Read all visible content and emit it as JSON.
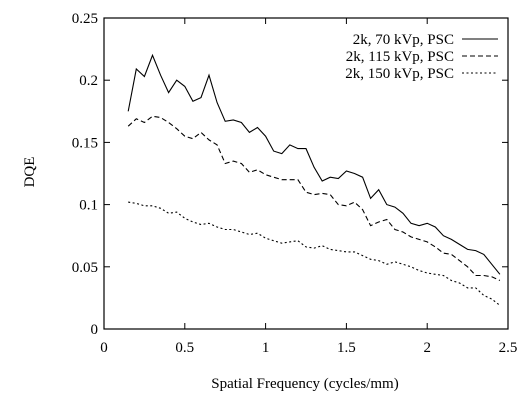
{
  "chart_data": {
    "type": "line",
    "title": "",
    "xlabel": "Spatial Frequency (cycles/mm)",
    "ylabel": "DQE",
    "xlim": [
      0,
      2.5
    ],
    "ylim": [
      0,
      0.25
    ],
    "xticks": [
      0,
      0.5,
      1,
      1.5,
      2,
      2.5
    ],
    "yticks": [
      0,
      0.05,
      0.1,
      0.15,
      0.2,
      0.25
    ],
    "xtick_labels": [
      "0",
      "0.5",
      "1",
      "1.5",
      "2",
      "2.5"
    ],
    "ytick_labels": [
      "0",
      "0.05",
      "0.1",
      "0.15",
      "0.2",
      "0.25"
    ],
    "grid": false,
    "legend_position": "top-right",
    "series": [
      {
        "name": "2k, 70 kVp, PSC",
        "style": "solid",
        "x": [
          0.15,
          0.2,
          0.25,
          0.3,
          0.35,
          0.4,
          0.45,
          0.5,
          0.55,
          0.6,
          0.65,
          0.7,
          0.75,
          0.8,
          0.85,
          0.9,
          0.95,
          1.0,
          1.05,
          1.1,
          1.15,
          1.2,
          1.25,
          1.3,
          1.35,
          1.4,
          1.45,
          1.5,
          1.55,
          1.6,
          1.65,
          1.7,
          1.75,
          1.8,
          1.85,
          1.9,
          1.95,
          2.0,
          2.05,
          2.1,
          2.15,
          2.2,
          2.25,
          2.3,
          2.35,
          2.4,
          2.45
        ],
        "y": [
          0.175,
          0.209,
          0.203,
          0.22,
          0.204,
          0.19,
          0.2,
          0.195,
          0.183,
          0.186,
          0.204,
          0.182,
          0.167,
          0.168,
          0.166,
          0.158,
          0.162,
          0.155,
          0.143,
          0.141,
          0.148,
          0.145,
          0.145,
          0.13,
          0.119,
          0.122,
          0.121,
          0.127,
          0.125,
          0.122,
          0.105,
          0.112,
          0.1,
          0.098,
          0.093,
          0.085,
          0.083,
          0.085,
          0.082,
          0.075,
          0.072,
          0.068,
          0.064,
          0.063,
          0.06,
          0.052,
          0.044
        ]
      },
      {
        "name": "2k, 115 kVp, PSC",
        "style": "dashed",
        "x": [
          0.15,
          0.2,
          0.25,
          0.3,
          0.35,
          0.4,
          0.45,
          0.5,
          0.55,
          0.6,
          0.65,
          0.7,
          0.75,
          0.8,
          0.85,
          0.9,
          0.95,
          1.0,
          1.05,
          1.1,
          1.15,
          1.2,
          1.25,
          1.3,
          1.35,
          1.4,
          1.45,
          1.5,
          1.55,
          1.6,
          1.65,
          1.7,
          1.75,
          1.8,
          1.85,
          1.9,
          1.95,
          2.0,
          2.05,
          2.1,
          2.15,
          2.2,
          2.25,
          2.3,
          2.35,
          2.4,
          2.45
        ],
        "y": [
          0.163,
          0.169,
          0.166,
          0.171,
          0.17,
          0.166,
          0.161,
          0.155,
          0.153,
          0.158,
          0.152,
          0.148,
          0.133,
          0.135,
          0.133,
          0.126,
          0.128,
          0.124,
          0.122,
          0.12,
          0.12,
          0.12,
          0.11,
          0.108,
          0.109,
          0.108,
          0.1,
          0.099,
          0.102,
          0.096,
          0.083,
          0.086,
          0.088,
          0.08,
          0.078,
          0.074,
          0.072,
          0.07,
          0.066,
          0.061,
          0.06,
          0.055,
          0.05,
          0.043,
          0.043,
          0.042,
          0.039
        ]
      },
      {
        "name": "2k, 150 kVp, PSC",
        "style": "dotted",
        "x": [
          0.15,
          0.2,
          0.25,
          0.3,
          0.35,
          0.4,
          0.45,
          0.5,
          0.55,
          0.6,
          0.65,
          0.7,
          0.75,
          0.8,
          0.85,
          0.9,
          0.95,
          1.0,
          1.05,
          1.1,
          1.15,
          1.2,
          1.25,
          1.3,
          1.35,
          1.4,
          1.45,
          1.5,
          1.55,
          1.6,
          1.65,
          1.7,
          1.75,
          1.8,
          1.85,
          1.9,
          1.95,
          2.0,
          2.05,
          2.1,
          2.15,
          2.2,
          2.25,
          2.3,
          2.35,
          2.4,
          2.45
        ],
        "y": [
          0.102,
          0.101,
          0.099,
          0.099,
          0.097,
          0.093,
          0.094,
          0.089,
          0.086,
          0.084,
          0.085,
          0.082,
          0.08,
          0.08,
          0.078,
          0.076,
          0.077,
          0.073,
          0.071,
          0.069,
          0.07,
          0.071,
          0.066,
          0.065,
          0.067,
          0.064,
          0.063,
          0.062,
          0.062,
          0.059,
          0.056,
          0.055,
          0.052,
          0.054,
          0.052,
          0.05,
          0.047,
          0.045,
          0.044,
          0.043,
          0.039,
          0.037,
          0.033,
          0.033,
          0.027,
          0.024,
          0.019
        ]
      }
    ]
  }
}
